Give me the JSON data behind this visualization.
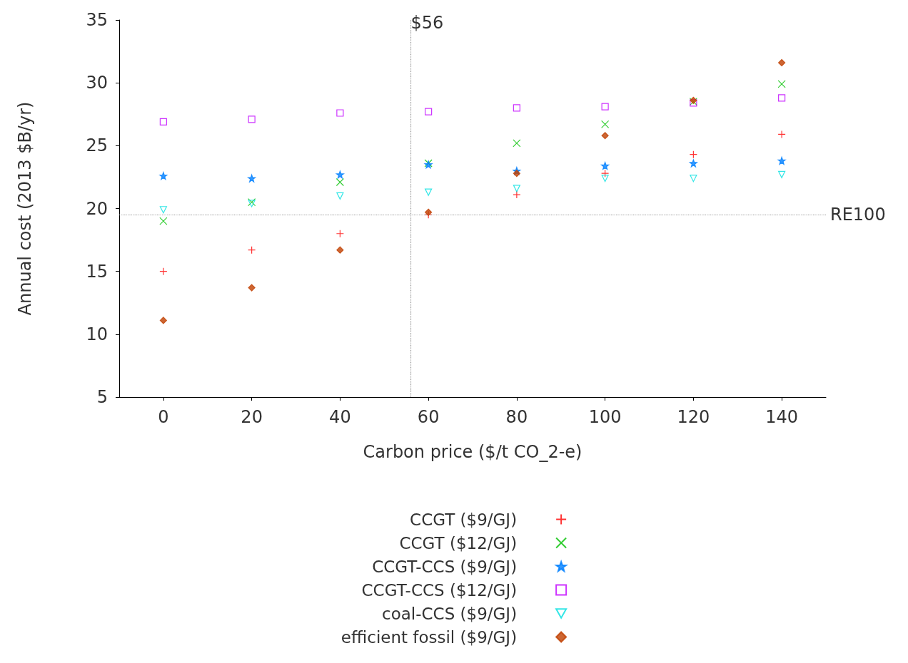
{
  "chart_data": {
    "type": "scatter",
    "xlabel": "Carbon price ($/t CO_2-e)",
    "ylabel": "Annual cost (2013 $B/yr)",
    "x": [
      0,
      20,
      40,
      60,
      80,
      100,
      120,
      140
    ],
    "xlim": [
      -10,
      150
    ],
    "xticks": [
      0,
      20,
      40,
      60,
      80,
      100,
      120,
      140
    ],
    "ylim": [
      5,
      35
    ],
    "yticks": [
      5,
      10,
      15,
      20,
      25,
      30,
      35
    ],
    "grid": false,
    "legend": "bottom",
    "series": [
      {
        "name": "CCGT ($9/GJ)",
        "color": "#ff0000",
        "marker": "plus",
        "values": [
          15.0,
          16.7,
          18.0,
          19.5,
          21.1,
          22.8,
          24.3,
          25.9
        ]
      },
      {
        "name": "CCGT ($12/GJ)",
        "color": "#00c000",
        "marker": "cross",
        "values": [
          19.0,
          20.5,
          22.1,
          23.6,
          25.2,
          26.7,
          28.5,
          29.9
        ]
      },
      {
        "name": "CCGT-CCS ($9/GJ)",
        "color": "#0080ff",
        "marker": "star",
        "values": [
          22.6,
          22.4,
          22.7,
          23.5,
          23.0,
          23.4,
          23.6,
          23.8
        ]
      },
      {
        "name": "CCGT-CCS ($12/GJ)",
        "color": "#c000ff",
        "marker": "square",
        "values": [
          26.9,
          27.1,
          27.6,
          27.7,
          28.0,
          28.1,
          28.4,
          28.8
        ]
      },
      {
        "name": "coal-CCS ($9/GJ)",
        "color": "#00e0e0",
        "marker": "triangle",
        "values": [
          19.9,
          20.4,
          21.0,
          21.3,
          21.6,
          22.4,
          22.4,
          22.7
        ]
      },
      {
        "name": "efficient fossil ($9/GJ)",
        "color": "#c04000",
        "marker": "diamond",
        "values": [
          11.1,
          13.7,
          16.7,
          19.7,
          22.8,
          25.8,
          28.6,
          31.6
        ]
      }
    ],
    "ref_lines": [
      {
        "axis": "x",
        "value": 56,
        "label": "$56",
        "color": "#999999",
        "line_style": "dotted"
      },
      {
        "axis": "y",
        "value": 19.5,
        "label": "RE100",
        "color": "#999999",
        "line_style": "dotted"
      }
    ]
  }
}
